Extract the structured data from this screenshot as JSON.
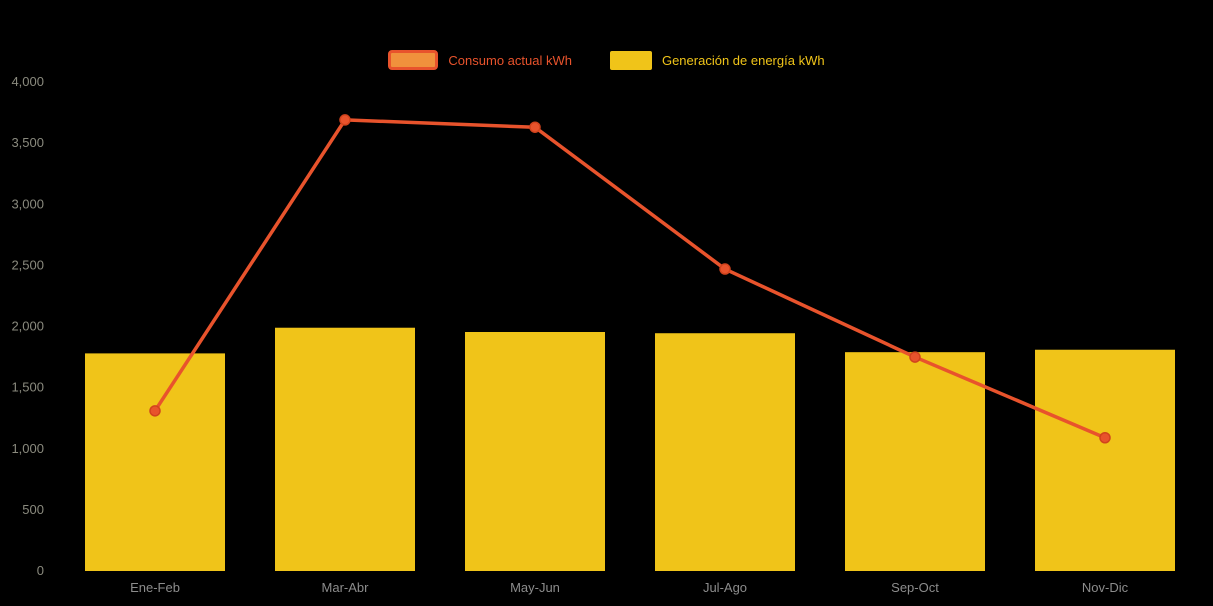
{
  "legend": {
    "position": "top",
    "items": [
      {
        "label": "Consumo actual kWh",
        "series": "line"
      },
      {
        "label": "Generación de energía kWh",
        "series": "bar"
      }
    ]
  },
  "colors": {
    "background": "#000000",
    "bar": "#F0C419",
    "line": "#E8532C",
    "line_marker_stroke": "#D1431D",
    "legend_line_fill": "#F0913C",
    "legend_line_border": "#E8532C",
    "axis_text": "#8A8A7E",
    "xaxis_text": "#8C8C8C"
  },
  "chart_data": {
    "type": "combo",
    "categories": [
      "Ene-Feb",
      "Mar-Abr",
      "May-Jun",
      "Jul-Ago",
      "Sep-Oct",
      "Nov-Dic"
    ],
    "series": [
      {
        "name": "Generación de energía kWh",
        "type": "bar",
        "color": "#F0C419",
        "values": [
          1780,
          1990,
          1955,
          1945,
          1790,
          1810
        ]
      },
      {
        "name": "Consumo actual kWh",
        "type": "line",
        "color": "#E8532C",
        "values": [
          1310,
          3690,
          3630,
          2470,
          1750,
          1090
        ]
      }
    ],
    "title": "",
    "xlabel": "",
    "ylabel": "",
    "ylim": [
      0,
      4000
    ],
    "ytick_step": 500,
    "ytick_labels": [
      "0",
      "500",
      "1,000",
      "1,500",
      "2,000",
      "2,500",
      "3,000",
      "3,500",
      "4,000"
    ],
    "grid": false,
    "legend_position": "top"
  }
}
